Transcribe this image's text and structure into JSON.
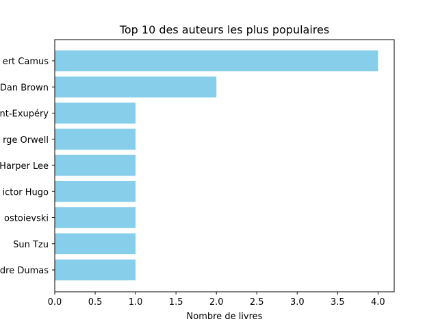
{
  "chart_data": {
    "type": "bar",
    "orientation": "horizontal",
    "title": "Top 10 des auteurs les plus populaires",
    "xlabel": "Nombre de livres",
    "ylabel": "",
    "xlim": [
      0,
      4.2
    ],
    "xticks": [
      0,
      0.5,
      1.0,
      1.5,
      2.0,
      2.5,
      3.0,
      3.5,
      4.0
    ],
    "xtick_labels": [
      "0.0",
      "0.5",
      "1.0",
      "1.5",
      "2.0",
      "2.5",
      "3.0",
      "3.5",
      "4.0"
    ],
    "categories": [
      "ert Camus",
      "Dan Brown",
      "nt-Exupéry",
      "rge Orwell",
      "Harper Lee",
      "ictor Hugo",
      "ostoievski",
      "Sun Tzu",
      "dre Dumas"
    ],
    "values": [
      4,
      2,
      1,
      1,
      1,
      1,
      1,
      1,
      1
    ],
    "bar_color": "#87ceeb",
    "grid": false,
    "legend": "none"
  }
}
